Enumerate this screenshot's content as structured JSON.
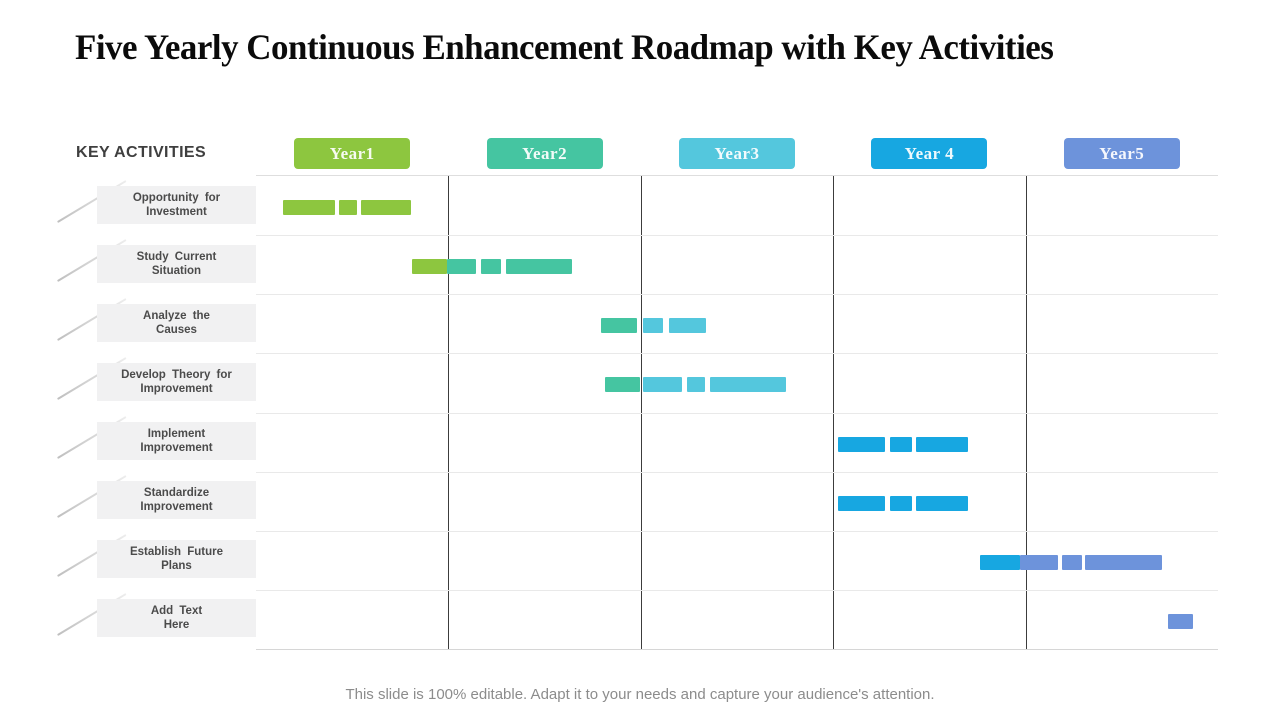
{
  "title": "Five Yearly Continuous Enhancement Roadmap with Key Activities",
  "key_activities_label": "KEY ACTIVITIES",
  "footer": "This slide is 100% editable. Adapt it to your needs and capture your audience's attention.",
  "colors": {
    "year1": "#8DC63F",
    "year2": "#45C5A1",
    "year3": "#54C7DD",
    "year4": "#17A7E1",
    "year5": "#6D93DB",
    "label_bg": "#F1F1F2",
    "grid_dark": "#3C3C3C",
    "grid_light": "#E9E9E9"
  },
  "chart_data": {
    "type": "gantt",
    "xlim": [
      0,
      5
    ],
    "grid": "on",
    "columns": [
      {
        "label": "Year1",
        "color": "#8DC63F"
      },
      {
        "label": "Year2",
        "color": "#45C5A1"
      },
      {
        "label": "Year3",
        "color": "#54C7DD"
      },
      {
        "label": "Year 4",
        "color": "#17A7E1"
      },
      {
        "label": "Year5",
        "color": "#6D93DB"
      }
    ],
    "rows": [
      {
        "label": "Opportunity for Investment",
        "label_lines": [
          "Opportunity for",
          "Investment"
        ],
        "segments": [
          {
            "start": 0.14,
            "end": 0.411,
            "year": 1
          },
          {
            "start": 0.431,
            "end": 0.525,
            "year": 1
          },
          {
            "start": 0.546,
            "end": 0.806,
            "year": 1
          }
        ]
      },
      {
        "label": "Study Current Situation",
        "label_lines": [
          "Study Current",
          "Situation"
        ],
        "segments": [
          {
            "start": 0.811,
            "end": 0.993,
            "year": 1
          },
          {
            "start": 0.993,
            "end": 1.143,
            "year": 2
          },
          {
            "start": 1.169,
            "end": 1.273,
            "year": 2
          },
          {
            "start": 1.299,
            "end": 1.642,
            "year": 2
          }
        ]
      },
      {
        "label": "Analyze the Causes",
        "label_lines": [
          "Analyze the",
          "Causes"
        ],
        "segments": [
          {
            "start": 1.793,
            "end": 1.98,
            "year": 2
          },
          {
            "start": 2.011,
            "end": 2.115,
            "year": 3
          },
          {
            "start": 2.146,
            "end": 2.339,
            "year": 3
          }
        ]
      },
      {
        "label": "Develop Theory for Improvement",
        "label_lines": [
          "Develop Theory for",
          "Improvement"
        ],
        "segments": [
          {
            "start": 1.814,
            "end": 1.996,
            "year": 2
          },
          {
            "start": 2.011,
            "end": 2.214,
            "year": 3
          },
          {
            "start": 2.24,
            "end": 2.334,
            "year": 3
          },
          {
            "start": 2.36,
            "end": 2.755,
            "year": 3
          }
        ]
      },
      {
        "label": "Implement Improvement",
        "label_lines": [
          "Implement",
          "Improvement"
        ],
        "segments": [
          {
            "start": 3.025,
            "end": 3.269,
            "year": 4
          },
          {
            "start": 3.295,
            "end": 3.41,
            "year": 4
          },
          {
            "start": 3.43,
            "end": 3.7,
            "year": 4
          }
        ]
      },
      {
        "label": "Standardize Improvement",
        "label_lines": [
          "Standardize",
          "Improvement"
        ],
        "segments": [
          {
            "start": 3.025,
            "end": 3.269,
            "year": 4
          },
          {
            "start": 3.295,
            "end": 3.41,
            "year": 4
          },
          {
            "start": 3.43,
            "end": 3.7,
            "year": 4
          }
        ]
      },
      {
        "label": "Establish Future Plans",
        "label_lines": [
          "Establish Future",
          "Plans"
        ],
        "segments": [
          {
            "start": 3.763,
            "end": 3.971,
            "year": 4
          },
          {
            "start": 3.971,
            "end": 4.168,
            "year": 5
          },
          {
            "start": 4.189,
            "end": 4.293,
            "year": 5
          },
          {
            "start": 4.309,
            "end": 4.709,
            "year": 5
          }
        ]
      },
      {
        "label": "Add Text Here",
        "label_lines": [
          "Add Text",
          "Here"
        ],
        "segments": [
          {
            "start": 4.74,
            "end": 4.87,
            "year": 5
          }
        ]
      }
    ]
  }
}
